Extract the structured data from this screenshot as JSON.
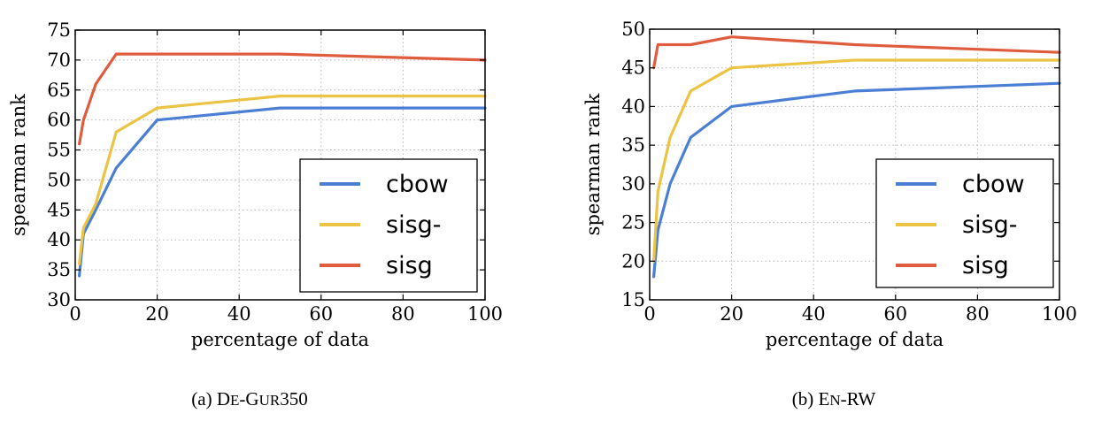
{
  "chart_data": [
    {
      "type": "line",
      "panel_caption": "(a) De-Gur350",
      "caption_prefix": "(a)",
      "caption_parts": [
        "D",
        "E",
        "-G",
        "UR",
        "350"
      ],
      "xlabel": "percentage of data",
      "ylabel": "spearman rank",
      "xlim": [
        0,
        100
      ],
      "ylim": [
        30,
        75
      ],
      "xticks": [
        0,
        20,
        40,
        60,
        80,
        100
      ],
      "yticks": [
        30,
        35,
        40,
        45,
        50,
        55,
        60,
        65,
        70,
        75
      ],
      "grid": true,
      "legend_position": "lower-right",
      "series": [
        {
          "name": "cbow",
          "color": "#4a7fd4",
          "x": [
            1,
            2,
            5,
            10,
            20,
            50,
            100
          ],
          "y": [
            34,
            41,
            45,
            52,
            60,
            62,
            62
          ]
        },
        {
          "name": "sisg-",
          "color": "#ebc443",
          "x": [
            1,
            2,
            5,
            10,
            20,
            50,
            100
          ],
          "y": [
            36,
            42,
            46,
            58,
            62,
            64,
            64
          ]
        },
        {
          "name": "sisg",
          "color": "#df5c3e",
          "x": [
            1,
            2,
            5,
            10,
            20,
            50,
            100
          ],
          "y": [
            56,
            60,
            66,
            71,
            71,
            71,
            70
          ]
        }
      ]
    },
    {
      "type": "line",
      "panel_caption": "(b) En-RW",
      "caption_prefix": "(b)",
      "caption_parts": [
        "E",
        "N",
        "-RW",
        "",
        ""
      ],
      "xlabel": "percentage of data",
      "ylabel": "spearman rank",
      "xlim": [
        0,
        100
      ],
      "ylim": [
        15,
        50
      ],
      "xticks": [
        0,
        20,
        40,
        60,
        80,
        100
      ],
      "yticks": [
        15,
        20,
        25,
        30,
        35,
        40,
        45,
        50
      ],
      "grid": true,
      "legend_position": "lower-right",
      "series": [
        {
          "name": "cbow",
          "color": "#4a7fd4",
          "x": [
            1,
            2,
            5,
            10,
            20,
            50,
            100
          ],
          "y": [
            18,
            24,
            30,
            36,
            40,
            42,
            43
          ]
        },
        {
          "name": "sisg-",
          "color": "#ebc443",
          "x": [
            1,
            2,
            5,
            10,
            20,
            50,
            100
          ],
          "y": [
            20,
            29,
            36,
            42,
            45,
            46,
            46
          ]
        },
        {
          "name": "sisg",
          "color": "#df5c3e",
          "x": [
            1,
            2,
            5,
            10,
            20,
            50,
            100
          ],
          "y": [
            45,
            48,
            48,
            48,
            49,
            48,
            47
          ]
        }
      ]
    }
  ]
}
